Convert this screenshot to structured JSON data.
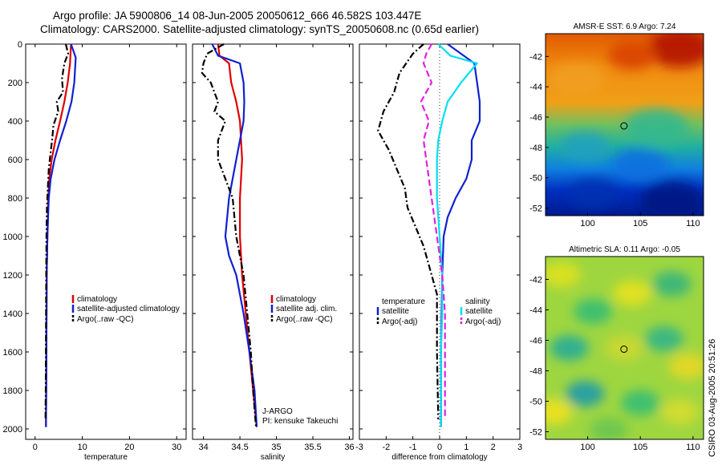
{
  "header": {
    "title_line1": "Argo profile: JA 5900806_14 08-Jun-2005 20050612_666 46.582S 103.447E",
    "title_line2": "Climatology: CARS2000. Satellite-adjusted climatology: synTS_20050608.nc (0.65d earlier)"
  },
  "side_label": "CSIRO 03-Aug-2005 20:51:26",
  "colors": {
    "climatology": "#e00000",
    "satellite": "#1020d0",
    "argo": "#000000",
    "satellite_salinity": "#00e0f0",
    "argo_salinity_adj": "#e020e0"
  },
  "chart_data": [
    {
      "type": "line",
      "name": "temperature-profile",
      "xlabel": "temperature",
      "ylabel": "",
      "xlim": [
        -2,
        32
      ],
      "ylim": [
        2000,
        0
      ],
      "y_reversed": true,
      "xticks": [
        0,
        10,
        20,
        30
      ],
      "yticks": [
        0,
        200,
        400,
        600,
        800,
        1000,
        1200,
        1400,
        1600,
        1800,
        2000
      ],
      "legend": [
        "climatology",
        "satellite-adjusted climatology",
        "Argo(..raw -QC)"
      ],
      "legend_position": "bottom-right",
      "series": [
        {
          "name": "climatology",
          "color": "#e00000",
          "style": "solid",
          "x": [
            7.6,
            7.4,
            6.9,
            6.2,
            5.3,
            4.3,
            3.5,
            3.0,
            2.8,
            2.6,
            2.45,
            2.4,
            2.35,
            2.3
          ],
          "y": [
            0,
            100,
            200,
            300,
            400,
            500,
            600,
            700,
            800,
            1000,
            1200,
            1500,
            1800,
            1990
          ]
        },
        {
          "name": "satellite-adjusted climatology",
          "color": "#1020d0",
          "style": "solid",
          "x": [
            7.6,
            8.6,
            8.3,
            7.7,
            6.6,
            5.3,
            4.1,
            3.3,
            2.9,
            2.6,
            2.45,
            2.4,
            2.35,
            2.3
          ],
          "y": [
            0,
            70,
            200,
            300,
            400,
            500,
            600,
            700,
            800,
            1000,
            1200,
            1500,
            1800,
            1990
          ]
        },
        {
          "name": "Argo(..raw -QC)",
          "color": "#000000",
          "style": "dashdot",
          "x": [
            6.5,
            7.0,
            6.2,
            5.7,
            5.9,
            4.6,
            4.9,
            3.9,
            3.6,
            3.2,
            2.9,
            2.7,
            2.5,
            2.4,
            2.35,
            2.3,
            2.25,
            2.2
          ],
          "y": [
            0,
            50,
            100,
            180,
            250,
            300,
            350,
            420,
            500,
            580,
            650,
            750,
            850,
            1000,
            1200,
            1500,
            1800,
            1950
          ]
        }
      ]
    },
    {
      "type": "line",
      "name": "salinity-profile",
      "xlabel": "salinity",
      "ylabel": "",
      "xlim": [
        33.85,
        36.05
      ],
      "ylim": [
        2000,
        0
      ],
      "y_reversed": true,
      "xticks": [
        34,
        34.5,
        35,
        35.5,
        36
      ],
      "yticks": [
        0,
        200,
        400,
        600,
        800,
        1000,
        1200,
        1400,
        1600,
        1800,
        2000
      ],
      "legend": [
        "climatology",
        "satellite adj. clim.",
        "Argo(..raw -QC)"
      ],
      "legend_position": "bottom-right",
      "annotations": [
        "J-ARGO",
        "PI: kensuke Takeuchi"
      ],
      "series": [
        {
          "name": "climatology",
          "color": "#e00000",
          "style": "solid",
          "x": [
            34.2,
            34.22,
            34.35,
            34.38,
            34.45,
            34.5,
            34.53,
            34.5,
            34.5,
            34.5,
            34.53,
            34.58,
            34.63,
            34.68,
            34.73
          ],
          "y": [
            0,
            60,
            100,
            200,
            300,
            400,
            600,
            800,
            900,
            1000,
            1200,
            1400,
            1600,
            1800,
            1990
          ]
        },
        {
          "name": "satellite adj. clim.",
          "color": "#1020d0",
          "style": "solid",
          "x": [
            34.12,
            34.2,
            34.5,
            34.55,
            34.56,
            34.55,
            34.5,
            34.45,
            34.35,
            34.3,
            34.35,
            34.45,
            34.55,
            34.63,
            34.7,
            34.73
          ],
          "y": [
            0,
            60,
            100,
            200,
            300,
            400,
            500,
            600,
            800,
            1000,
            1100,
            1200,
            1400,
            1600,
            1800,
            1990
          ]
        },
        {
          "name": "Argo(..raw -QC)",
          "color": "#000000",
          "style": "dashdot",
          "x": [
            34.28,
            34.05,
            34.0,
            33.98,
            34.1,
            34.2,
            34.15,
            34.3,
            34.2,
            34.2,
            34.3,
            34.4,
            34.45,
            34.55,
            34.6,
            34.65,
            34.68,
            34.72
          ],
          "y": [
            0,
            50,
            100,
            150,
            200,
            300,
            350,
            400,
            500,
            600,
            700,
            800,
            1000,
            1200,
            1400,
            1600,
            1800,
            1990
          ]
        }
      ]
    },
    {
      "type": "line",
      "name": "difference-profile",
      "xlabel": "difference from climatology",
      "ylabel": "",
      "xlim": [
        -3,
        3
      ],
      "ylim": [
        2000,
        0
      ],
      "y_reversed": true,
      "xticks": [
        -3,
        -2,
        -1,
        0,
        1,
        2,
        3
      ],
      "yticks": [
        0,
        200,
        400,
        600,
        800,
        1000,
        1200,
        1400,
        1600,
        1800,
        2000
      ],
      "legend": [
        "temperature",
        "satellite",
        "Argo(-adj)",
        "salinity",
        "satellite",
        "Argo(-adj)"
      ],
      "legend_position": "bottom",
      "series": [
        {
          "name": "temperature satellite",
          "color": "#1020d0",
          "style": "solid",
          "x": [
            0.3,
            1.3,
            1.4,
            1.5,
            1.5,
            1.2,
            1.2,
            1.0,
            0.6,
            0.3,
            0.15,
            0.1,
            0.05,
            0.05
          ],
          "y": [
            0,
            100,
            200,
            300,
            400,
            500,
            600,
            700,
            800,
            900,
            1000,
            1200,
            1600,
            1990
          ]
        },
        {
          "name": "temperature Argo(-adj)",
          "color": "#000000",
          "style": "dashdot",
          "x": [
            -0.6,
            -1.0,
            -1.5,
            -1.7,
            -2.1,
            -2.3,
            -1.9,
            -1.6,
            -1.3,
            -1.2,
            -0.9,
            -0.6,
            -0.4,
            -0.1,
            -0.1,
            -0.05
          ],
          "y": [
            0,
            50,
            150,
            250,
            350,
            450,
            550,
            650,
            750,
            850,
            950,
            1050,
            1150,
            1300,
            1600,
            1950
          ]
        },
        {
          "name": "salinity satellite",
          "color": "#00e0f0",
          "style": "solid",
          "x": [
            -0.05,
            0.4,
            1.4,
            0.8,
            0.3,
            0.1,
            -0.05,
            -0.1,
            -0.1,
            0.0,
            0.1,
            0.1,
            0.05,
            0.05
          ],
          "y": [
            0,
            60,
            100,
            200,
            300,
            400,
            500,
            600,
            800,
            1000,
            1200,
            1400,
            1600,
            1990
          ]
        },
        {
          "name": "salinity Argo(-adj)",
          "color": "#e020e0",
          "style": "dashed",
          "x": [
            -0.3,
            -0.5,
            -0.6,
            -0.3,
            -0.7,
            -0.4,
            -0.6,
            -0.5,
            -0.3,
            -0.1,
            0.1,
            0.2,
            0.2,
            0.2
          ],
          "y": [
            0,
            50,
            100,
            200,
            300,
            400,
            500,
            600,
            800,
            1000,
            1200,
            1400,
            1600,
            1950
          ]
        }
      ]
    },
    {
      "type": "heatmap",
      "name": "sst-map",
      "title": "AMSR-E SST: 6.9 Argo: 7.24",
      "xlim": [
        96,
        111
      ],
      "ylim": [
        -52.5,
        -40.5
      ],
      "xticks": [
        100,
        105,
        110
      ],
      "yticks": [
        -42,
        -44,
        -46,
        -48,
        -50,
        -52
      ],
      "marker": {
        "lon": 103.447,
        "lat": -46.582
      }
    },
    {
      "type": "heatmap",
      "name": "sla-map",
      "title": "Altimetric SLA: 0.11 Argo: -0.05",
      "xlim": [
        96,
        111
      ],
      "ylim": [
        -52.5,
        -40.5
      ],
      "xticks": [
        100,
        105,
        110
      ],
      "yticks": [
        -42,
        -44,
        -46,
        -48,
        -50,
        -52
      ],
      "marker": {
        "lon": 103.447,
        "lat": -46.582
      }
    }
  ]
}
